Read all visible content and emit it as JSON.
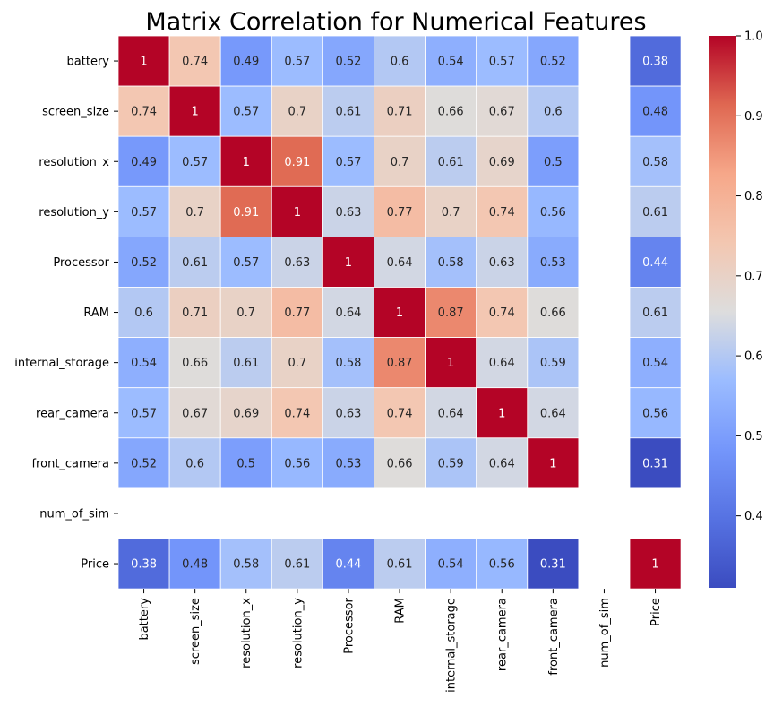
{
  "chart_data": {
    "type": "heatmap",
    "title": "Matrix Correlation for Numerical Features",
    "labels": [
      "battery",
      "screen_size",
      "resolution_x",
      "resolution_y",
      "Processor",
      "RAM",
      "internal_storage",
      "rear_camera",
      "front_camera",
      "num_of_sim",
      "Price"
    ],
    "matrix": [
      [
        1,
        0.74,
        0.49,
        0.57,
        0.52,
        0.6,
        0.54,
        0.57,
        0.52,
        null,
        0.38
      ],
      [
        0.74,
        1,
        0.57,
        0.7,
        0.61,
        0.71,
        0.66,
        0.67,
        0.6,
        null,
        0.48
      ],
      [
        0.49,
        0.57,
        1,
        0.91,
        0.57,
        0.7,
        0.61,
        0.69,
        0.5,
        null,
        0.58
      ],
      [
        0.57,
        0.7,
        0.91,
        1,
        0.63,
        0.77,
        0.7,
        0.74,
        0.56,
        null,
        0.61
      ],
      [
        0.52,
        0.61,
        0.57,
        0.63,
        1,
        0.64,
        0.58,
        0.63,
        0.53,
        null,
        0.44
      ],
      [
        0.6,
        0.71,
        0.7,
        0.77,
        0.64,
        1,
        0.87,
        0.74,
        0.66,
        null,
        0.61
      ],
      [
        0.54,
        0.66,
        0.61,
        0.7,
        0.58,
        0.87,
        1,
        0.64,
        0.59,
        null,
        0.54
      ],
      [
        0.57,
        0.67,
        0.69,
        0.74,
        0.63,
        0.74,
        0.64,
        1,
        0.64,
        null,
        0.56
      ],
      [
        0.52,
        0.6,
        0.5,
        0.56,
        0.53,
        0.66,
        0.59,
        0.64,
        1,
        null,
        0.31
      ],
      [
        null,
        null,
        null,
        null,
        null,
        null,
        null,
        null,
        null,
        null,
        null
      ],
      [
        0.38,
        0.48,
        0.58,
        0.61,
        0.44,
        0.61,
        0.54,
        0.56,
        0.31,
        null,
        1
      ]
    ],
    "colorbar": {
      "vmin": 0.31,
      "vmax": 1.0,
      "ticks": [
        0.4,
        0.5,
        0.6,
        0.7,
        0.8,
        0.9,
        1.0
      ],
      "tick_labels": [
        "0.4",
        "0.5",
        "0.6",
        "0.7",
        "0.8",
        "0.9",
        "1.0"
      ]
    },
    "colormap": "coolwarm",
    "annotated": true
  }
}
